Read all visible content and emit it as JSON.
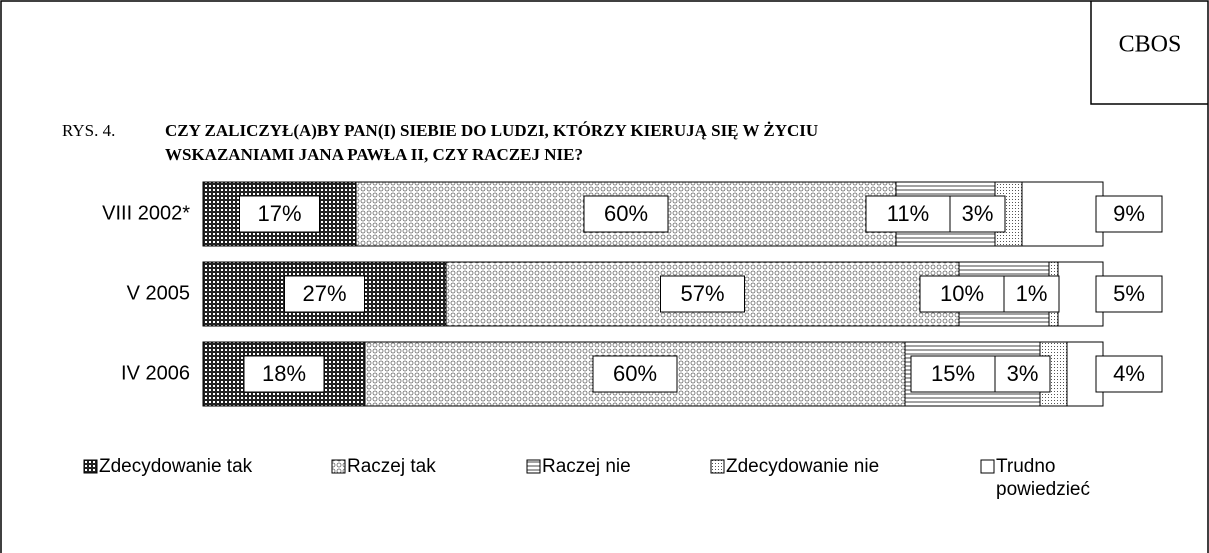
{
  "brand": "CBOS",
  "chart_data": {
    "type": "stacked_bar_horizontal",
    "figure_label": "RYS. 4.",
    "title": [
      "CZY ZALICZYŁ(A)BY PAN(I) SIEBIE DO LUDZI, KTÓRZY KIERUJĄ SIĘ W ŻYCIU",
      "WSKAZANIAMI JANA PAWŁA II, CZY RACZEJ NIE?"
    ],
    "categories": [
      "VIII 2002*",
      "V 2005",
      "IV 2006"
    ],
    "series": [
      {
        "name": "Zdecydowanie tak",
        "pattern": "grid",
        "values": [
          17,
          27,
          18
        ],
        "value_labels": [
          "17%",
          "27%",
          "18%"
        ]
      },
      {
        "name": "Raczej tak",
        "pattern": "circles",
        "values": [
          60,
          57,
          60
        ],
        "value_labels": [
          "60%",
          "57%",
          "60%"
        ]
      },
      {
        "name": "Raczej nie",
        "pattern": "hlines",
        "values": [
          11,
          10,
          15
        ],
        "value_labels": [
          "11%",
          "10%",
          "15%"
        ]
      },
      {
        "name": "Zdecydowanie nie",
        "pattern": "dots",
        "values": [
          3,
          1,
          3
        ],
        "value_labels": [
          "3%",
          "1%",
          "3%"
        ]
      },
      {
        "name": "Trudno powiedzieć",
        "pattern": "blank",
        "values": [
          9,
          5,
          4
        ],
        "value_labels": [
          "9%",
          "5%",
          "4%"
        ]
      }
    ]
  }
}
